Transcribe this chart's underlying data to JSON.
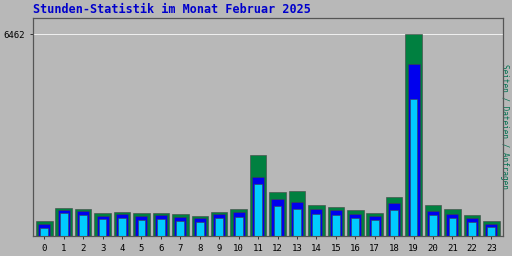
{
  "title": "Stunden-Statistik im Monat Februar 2025",
  "title_color": "#0000CC",
  "background_color": "#B8B8B8",
  "plot_bg_color": "#B8B8B8",
  "ylabel_right": "Seiten / Dateien / Anfragen",
  "ylabel_right_color": "#007050",
  "ytick_label": "6462",
  "hours": [
    0,
    1,
    2,
    3,
    4,
    5,
    6,
    7,
    8,
    9,
    10,
    11,
    12,
    13,
    14,
    15,
    16,
    17,
    18,
    19,
    20,
    21,
    22,
    23
  ],
  "seiten": [
    480,
    900,
    850,
    720,
    780,
    720,
    750,
    700,
    650,
    780,
    850,
    2600,
    1400,
    1450,
    1000,
    940,
    820,
    750,
    1250,
    6462,
    1000,
    860,
    670,
    490
  ],
  "dateien": [
    370,
    830,
    790,
    650,
    710,
    640,
    670,
    610,
    560,
    700,
    760,
    1900,
    1180,
    1090,
    870,
    820,
    710,
    650,
    1040,
    5500,
    800,
    710,
    570,
    390
  ],
  "anfragen": [
    260,
    720,
    670,
    530,
    580,
    510,
    540,
    490,
    440,
    560,
    610,
    1650,
    960,
    870,
    700,
    660,
    570,
    510,
    830,
    4400,
    660,
    580,
    450,
    300
  ],
  "color_seiten": "#008040",
  "color_dateien": "#0000EE",
  "color_anfragen": "#00CCFF",
  "ylim": [
    0,
    7000
  ],
  "grid_color": "#999999"
}
